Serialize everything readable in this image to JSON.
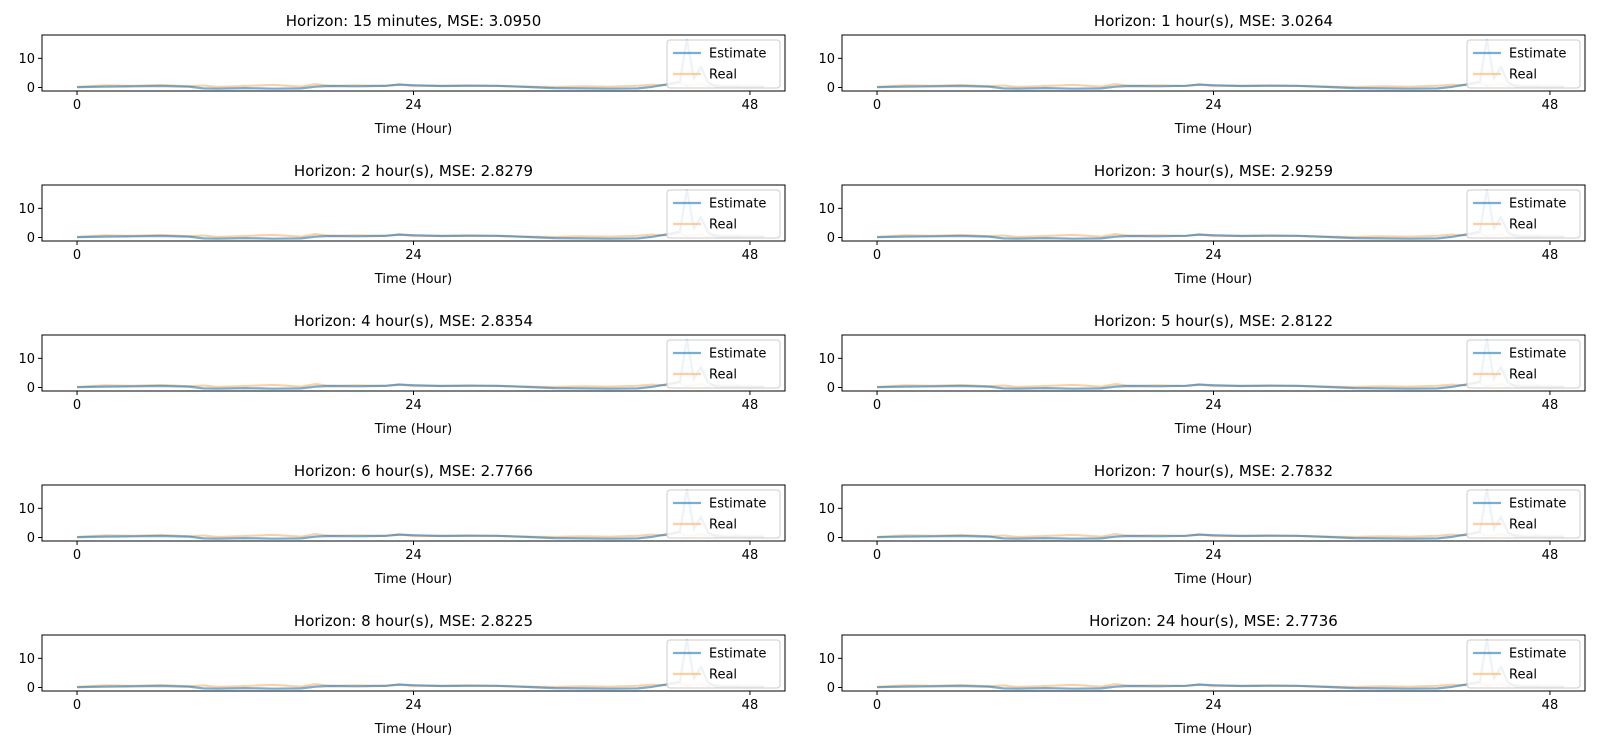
{
  "figure": {
    "background": "#ffffff",
    "estimate_color": "#1f77b4",
    "real_color": "#ffbb78"
  },
  "chart_data": [
    {
      "type": "line",
      "title": "Horizon: 15 minutes, MSE: 3.0950",
      "xlabel": "Time (Hour)",
      "ylabel": "",
      "xticks": [
        "0",
        "24",
        "48"
      ],
      "yticks": [
        "0",
        "10"
      ],
      "xlim": [
        -2.5,
        50.5
      ],
      "ylim": [
        -1.2,
        18
      ],
      "legend": [
        "Estimate",
        "Real"
      ],
      "legend_loc": "upper right",
      "series": [
        {
          "name": "Estimate"
        },
        {
          "name": "Real"
        }
      ]
    },
    {
      "type": "line",
      "title": "Horizon: 1 hour(s), MSE: 3.0264",
      "xlabel": "Time (Hour)",
      "ylabel": "",
      "xticks": [
        "0",
        "24",
        "48"
      ],
      "yticks": [
        "0",
        "10"
      ],
      "xlim": [
        -2.5,
        50.5
      ],
      "ylim": [
        -1.2,
        18
      ],
      "legend": [
        "Estimate",
        "Real"
      ],
      "legend_loc": "upper right",
      "series": [
        {
          "name": "Estimate"
        },
        {
          "name": "Real"
        }
      ]
    },
    {
      "type": "line",
      "title": "Horizon: 2 hour(s), MSE: 2.8279",
      "xlabel": "Time (Hour)",
      "ylabel": "",
      "xticks": [
        "0",
        "24",
        "48"
      ],
      "yticks": [
        "0",
        "10"
      ],
      "xlim": [
        -2.5,
        50.5
      ],
      "ylim": [
        -1.2,
        18
      ],
      "legend": [
        "Estimate",
        "Real"
      ],
      "legend_loc": "upper right",
      "series": [
        {
          "name": "Estimate"
        },
        {
          "name": "Real"
        }
      ]
    },
    {
      "type": "line",
      "title": "Horizon: 3 hour(s), MSE: 2.9259",
      "xlabel": "Time (Hour)",
      "ylabel": "",
      "xticks": [
        "0",
        "24",
        "48"
      ],
      "yticks": [
        "0",
        "10"
      ],
      "xlim": [
        -2.5,
        50.5
      ],
      "ylim": [
        -1.2,
        18
      ],
      "legend": [
        "Estimate",
        "Real"
      ],
      "legend_loc": "upper right",
      "series": [
        {
          "name": "Estimate"
        },
        {
          "name": "Real"
        }
      ]
    },
    {
      "type": "line",
      "title": "Horizon: 4 hour(s), MSE: 2.8354",
      "xlabel": "Time (Hour)",
      "ylabel": "",
      "xticks": [
        "0",
        "24",
        "48"
      ],
      "yticks": [
        "0",
        "10"
      ],
      "xlim": [
        -2.5,
        50.5
      ],
      "ylim": [
        -1.2,
        18
      ],
      "legend": [
        "Estimate",
        "Real"
      ],
      "legend_loc": "upper right",
      "series": [
        {
          "name": "Estimate"
        },
        {
          "name": "Real"
        }
      ]
    },
    {
      "type": "line",
      "title": "Horizon: 5 hour(s), MSE: 2.8122",
      "xlabel": "Time (Hour)",
      "ylabel": "",
      "xticks": [
        "0",
        "24",
        "48"
      ],
      "yticks": [
        "0",
        "10"
      ],
      "xlim": [
        -2.5,
        50.5
      ],
      "ylim": [
        -1.2,
        18
      ],
      "legend": [
        "Estimate",
        "Real"
      ],
      "legend_loc": "upper right",
      "series": [
        {
          "name": "Estimate"
        },
        {
          "name": "Real"
        }
      ]
    },
    {
      "type": "line",
      "title": "Horizon: 6 hour(s), MSE: 2.7766",
      "xlabel": "Time (Hour)",
      "ylabel": "",
      "xticks": [
        "0",
        "24",
        "48"
      ],
      "yticks": [
        "0",
        "10"
      ],
      "xlim": [
        -2.5,
        50.5
      ],
      "ylim": [
        -1.2,
        18
      ],
      "legend": [
        "Estimate",
        "Real"
      ],
      "legend_loc": "upper right",
      "series": [
        {
          "name": "Estimate"
        },
        {
          "name": "Real"
        }
      ]
    },
    {
      "type": "line",
      "title": "Horizon: 7 hour(s), MSE: 2.7832",
      "xlabel": "Time (Hour)",
      "ylabel": "",
      "xticks": [
        "0",
        "24",
        "48"
      ],
      "yticks": [
        "0",
        "10"
      ],
      "xlim": [
        -2.5,
        50.5
      ],
      "ylim": [
        -1.2,
        18
      ],
      "legend": [
        "Estimate",
        "Real"
      ],
      "legend_loc": "upper right",
      "series": [
        {
          "name": "Estimate"
        },
        {
          "name": "Real"
        }
      ]
    },
    {
      "type": "line",
      "title": "Horizon: 8 hour(s), MSE: 2.8225",
      "xlabel": "Time (Hour)",
      "ylabel": "",
      "xticks": [
        "0",
        "24",
        "48"
      ],
      "yticks": [
        "0",
        "10"
      ],
      "xlim": [
        -2.5,
        50.5
      ],
      "ylim": [
        -1.2,
        18
      ],
      "legend": [
        "Estimate",
        "Real"
      ],
      "legend_loc": "upper right",
      "series": [
        {
          "name": "Estimate"
        },
        {
          "name": "Real"
        }
      ]
    },
    {
      "type": "line",
      "title": "Horizon: 24 hour(s), MSE: 2.7736",
      "xlabel": "Time (Hour)",
      "ylabel": "",
      "xticks": [
        "0",
        "24",
        "48"
      ],
      "yticks": [
        "0",
        "10"
      ],
      "xlim": [
        -2.5,
        50.5
      ],
      "ylim": [
        -1.2,
        18
      ],
      "legend": [
        "Estimate",
        "Real"
      ],
      "legend_loc": "upper right",
      "series": [
        {
          "name": "Estimate"
        },
        {
          "name": "Real"
        }
      ]
    }
  ],
  "series_points": {
    "x": [
      0,
      2,
      4,
      6,
      8,
      9,
      10,
      12,
      14,
      16,
      17,
      18,
      20,
      22,
      23,
      24,
      26,
      28,
      30,
      32,
      34,
      36,
      38,
      40,
      41,
      42,
      43,
      43.5,
      44,
      44.5,
      45,
      45.5,
      46,
      46.5,
      47,
      47.5,
      48,
      49
    ],
    "estimate": [
      0.1,
      0.3,
      0.4,
      0.5,
      0.3,
      -0.3,
      -0.4,
      -0.2,
      -0.4,
      -0.3,
      0.3,
      0.5,
      0.4,
      0.6,
      1.0,
      0.8,
      0.5,
      0.6,
      0.6,
      0.2,
      -0.2,
      -0.3,
      -0.4,
      -0.3,
      0.2,
      1.0,
      2.0,
      16.5,
      3.0,
      7.0,
      1.8,
      0.5,
      0.2,
      0.2,
      0.2,
      0.1,
      0.1,
      0.1
    ],
    "real": [
      0.2,
      0.8,
      0.6,
      0.9,
      0.4,
      0.7,
      0.2,
      0.5,
      0.9,
      0.3,
      1.2,
      0.6,
      0.8,
      0.5,
      1.1,
      0.4,
      0.6,
      0.8,
      0.5,
      0.3,
      0.2,
      0.4,
      0.3,
      0.6,
      1.0,
      0.8,
      1.5,
      0.5,
      0.8,
      1.2,
      0.4,
      1.0,
      0.8,
      0.5,
      0.9,
      0.6,
      0.7,
      0.5
    ]
  }
}
